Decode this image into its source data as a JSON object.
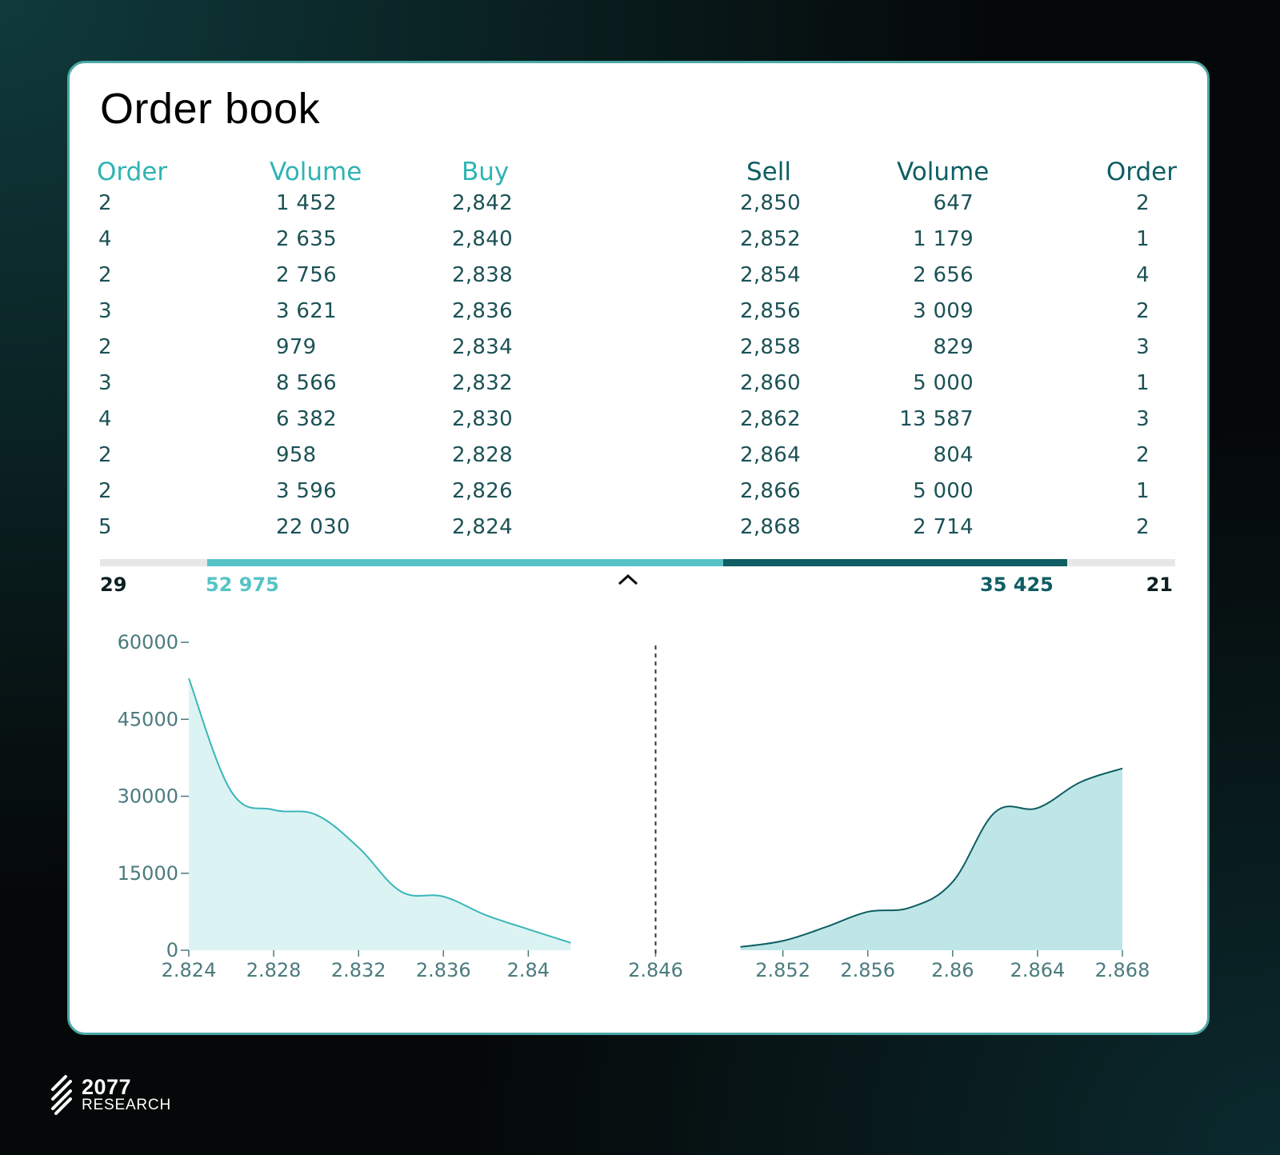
{
  "title": "Order book",
  "headers": {
    "buy_order": "Order",
    "buy_volume": "Volume",
    "buy_price": "Buy",
    "sell_price": "Sell",
    "sell_volume": "Volume",
    "sell_order": "Order"
  },
  "rows": [
    {
      "buy_order": "2",
      "buy_volume": "1 452",
      "buy_price": "2,842",
      "sell_price": "2,850",
      "sell_volume": "647",
      "sell_order": "2"
    },
    {
      "buy_order": "4",
      "buy_volume": "2 635",
      "buy_price": "2,840",
      "sell_price": "2,852",
      "sell_volume": "1 179",
      "sell_order": "1"
    },
    {
      "buy_order": "2",
      "buy_volume": "2 756",
      "buy_price": "2,838",
      "sell_price": "2,854",
      "sell_volume": "2 656",
      "sell_order": "4"
    },
    {
      "buy_order": "3",
      "buy_volume": "3 621",
      "buy_price": "2,836",
      "sell_price": "2,856",
      "sell_volume": "3 009",
      "sell_order": "2"
    },
    {
      "buy_order": "2",
      "buy_volume": "979",
      "buy_price": "2,834",
      "sell_price": "2,858",
      "sell_volume": "829",
      "sell_order": "3"
    },
    {
      "buy_order": "3",
      "buy_volume": "8 566",
      "buy_price": "2,832",
      "sell_price": "2,860",
      "sell_volume": "5 000",
      "sell_order": "1"
    },
    {
      "buy_order": "4",
      "buy_volume": "6 382",
      "buy_price": "2,830",
      "sell_price": "2,862",
      "sell_volume": "13 587",
      "sell_order": "3"
    },
    {
      "buy_order": "2",
      "buy_volume": "958",
      "buy_price": "2,828",
      "sell_price": "2,864",
      "sell_volume": "804",
      "sell_order": "2"
    },
    {
      "buy_order": "2",
      "buy_volume": "3 596",
      "buy_price": "2,826",
      "sell_price": "2,866",
      "sell_volume": "5 000",
      "sell_order": "1"
    },
    {
      "buy_order": "5",
      "buy_volume": "22 030",
      "buy_price": "2,824",
      "sell_price": "2,868",
      "sell_volume": "2 714",
      "sell_order": "2"
    }
  ],
  "totals": {
    "buy_orders": "29",
    "buy_volume": "52 975",
    "sell_volume": "35 425",
    "sell_orders": "21"
  },
  "colors": {
    "buy": "#2fb3b3",
    "sell": "#0e5e63",
    "buy_fill": "#dcf3f4",
    "sell_fill": "#bfe6e7"
  },
  "chart_data": {
    "type": "area",
    "ylim": [
      0,
      60000
    ],
    "xlim": [
      2.824,
      2.868
    ],
    "yticks": [
      "0",
      "15000",
      "30000",
      "45000",
      "60000"
    ],
    "xticks": [
      "2.824",
      "2.828",
      "2.832",
      "2.836",
      "2.84",
      "2.846",
      "2.852",
      "2.856",
      "2.86",
      "2.864",
      "2.868"
    ],
    "midpoint": 2.846,
    "series": [
      {
        "side": "buy",
        "x": [
          2.824,
          2.826,
          2.828,
          2.83,
          2.832,
          2.834,
          2.836,
          2.838,
          2.84,
          2.842
        ],
        "y": [
          52975,
          30945,
          27349,
          26391,
          20009,
          11443,
          10464,
          6843,
          4087,
          1452
        ]
      },
      {
        "side": "sell",
        "x": [
          2.85,
          2.852,
          2.854,
          2.856,
          2.858,
          2.86,
          2.862,
          2.864,
          2.866,
          2.868
        ],
        "y": [
          647,
          1826,
          4482,
          7491,
          8320,
          13320,
          26907,
          27711,
          32711,
          35425
        ]
      }
    ]
  },
  "logo": {
    "number": "2077",
    "subtitle": "RESEARCH"
  }
}
